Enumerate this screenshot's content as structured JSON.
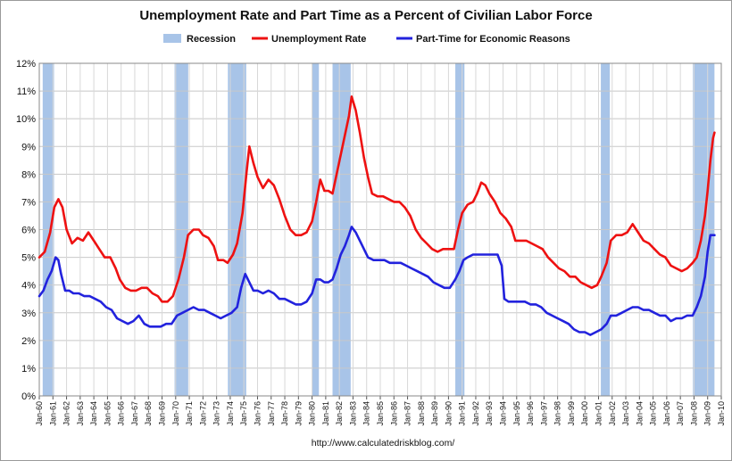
{
  "chart_data": {
    "type": "line",
    "title": "Unemployment Rate and Part Time as a Percent of Civilian Labor Force",
    "source": "http://www.calculatedriskblog.com/",
    "ylim": [
      0,
      12
    ],
    "y_ticks": [
      "0%",
      "1%",
      "2%",
      "3%",
      "4%",
      "5%",
      "6%",
      "7%",
      "8%",
      "9%",
      "10%",
      "11%",
      "12%"
    ],
    "x_range": [
      1960.0,
      2010.0
    ],
    "x_ticks": [
      "Jan-60",
      "Jan-61",
      "Jan-62",
      "Jan-63",
      "Jan-64",
      "Jan-65",
      "Jan-66",
      "Jan-67",
      "Jan-68",
      "Jan-69",
      "Jan-70",
      "Jan-71",
      "Jan-72",
      "Jan-73",
      "Jan-74",
      "Jan-75",
      "Jan-76",
      "Jan-77",
      "Jan-78",
      "Jan-79",
      "Jan-80",
      "Jan-81",
      "Jan-82",
      "Jan-83",
      "Jan-84",
      "Jan-85",
      "Jan-86",
      "Jan-87",
      "Jan-88",
      "Jan-89",
      "Jan-90",
      "Jan-91",
      "Jan-92",
      "Jan-93",
      "Jan-94",
      "Jan-95",
      "Jan-96",
      "Jan-97",
      "Jan-98",
      "Jan-99",
      "Jan-00",
      "Jan-01",
      "Jan-02",
      "Jan-03",
      "Jan-04",
      "Jan-05",
      "Jan-06",
      "Jan-07",
      "Jan-08",
      "Jan-09",
      "Jan-10"
    ],
    "grid": true,
    "legend_position": "top-center",
    "recessions": [
      [
        1960.25,
        1961.08
      ],
      [
        1969.92,
        1970.92
      ],
      [
        1973.83,
        1975.17
      ],
      [
        1980.0,
        1980.5
      ],
      [
        1981.5,
        1982.83
      ],
      [
        1990.5,
        1991.17
      ],
      [
        2001.17,
        2001.83
      ],
      [
        2007.92,
        2009.5
      ]
    ],
    "series": [
      {
        "name": "Unemployment Rate",
        "color": "#ee1111",
        "points": [
          [
            1960.0,
            5.0
          ],
          [
            1960.4,
            5.2
          ],
          [
            1960.8,
            5.9
          ],
          [
            1961.1,
            6.8
          ],
          [
            1961.4,
            7.1
          ],
          [
            1961.7,
            6.8
          ],
          [
            1962.0,
            6.0
          ],
          [
            1962.4,
            5.5
          ],
          [
            1962.8,
            5.7
          ],
          [
            1963.2,
            5.6
          ],
          [
            1963.6,
            5.9
          ],
          [
            1964.0,
            5.6
          ],
          [
            1964.4,
            5.3
          ],
          [
            1964.8,
            5.0
          ],
          [
            1965.2,
            5.0
          ],
          [
            1965.6,
            4.6
          ],
          [
            1965.9,
            4.2
          ],
          [
            1966.3,
            3.9
          ],
          [
            1966.7,
            3.8
          ],
          [
            1967.1,
            3.8
          ],
          [
            1967.5,
            3.9
          ],
          [
            1967.9,
            3.9
          ],
          [
            1968.3,
            3.7
          ],
          [
            1968.7,
            3.6
          ],
          [
            1969.0,
            3.4
          ],
          [
            1969.4,
            3.4
          ],
          [
            1969.8,
            3.6
          ],
          [
            1970.2,
            4.2
          ],
          [
            1970.6,
            5.0
          ],
          [
            1970.9,
            5.8
          ],
          [
            1971.3,
            6.0
          ],
          [
            1971.7,
            6.0
          ],
          [
            1972.0,
            5.8
          ],
          [
            1972.4,
            5.7
          ],
          [
            1972.8,
            5.4
          ],
          [
            1973.1,
            4.9
          ],
          [
            1973.5,
            4.9
          ],
          [
            1973.8,
            4.8
          ],
          [
            1974.2,
            5.1
          ],
          [
            1974.5,
            5.5
          ],
          [
            1974.9,
            6.6
          ],
          [
            1975.2,
            8.1
          ],
          [
            1975.4,
            9.0
          ],
          [
            1975.7,
            8.4
          ],
          [
            1976.0,
            7.9
          ],
          [
            1976.4,
            7.5
          ],
          [
            1976.8,
            7.8
          ],
          [
            1977.2,
            7.6
          ],
          [
            1977.6,
            7.1
          ],
          [
            1978.0,
            6.5
          ],
          [
            1978.4,
            6.0
          ],
          [
            1978.8,
            5.8
          ],
          [
            1979.2,
            5.8
          ],
          [
            1979.6,
            5.9
          ],
          [
            1980.0,
            6.3
          ],
          [
            1980.3,
            7.0
          ],
          [
            1980.6,
            7.8
          ],
          [
            1980.9,
            7.4
          ],
          [
            1981.2,
            7.4
          ],
          [
            1981.5,
            7.3
          ],
          [
            1981.8,
            8.0
          ],
          [
            1982.1,
            8.7
          ],
          [
            1982.4,
            9.4
          ],
          [
            1982.7,
            10.1
          ],
          [
            1982.9,
            10.8
          ],
          [
            1983.2,
            10.3
          ],
          [
            1983.5,
            9.5
          ],
          [
            1983.8,
            8.6
          ],
          [
            1984.1,
            7.9
          ],
          [
            1984.4,
            7.3
          ],
          [
            1984.8,
            7.2
          ],
          [
            1985.2,
            7.2
          ],
          [
            1985.6,
            7.1
          ],
          [
            1986.0,
            7.0
          ],
          [
            1986.4,
            7.0
          ],
          [
            1986.8,
            6.8
          ],
          [
            1987.2,
            6.5
          ],
          [
            1987.6,
            6.0
          ],
          [
            1988.0,
            5.7
          ],
          [
            1988.4,
            5.5
          ],
          [
            1988.8,
            5.3
          ],
          [
            1989.2,
            5.2
          ],
          [
            1989.6,
            5.3
          ],
          [
            1990.0,
            5.3
          ],
          [
            1990.4,
            5.3
          ],
          [
            1990.7,
            6.0
          ],
          [
            1991.0,
            6.6
          ],
          [
            1991.4,
            6.9
          ],
          [
            1991.8,
            7.0
          ],
          [
            1992.1,
            7.3
          ],
          [
            1992.4,
            7.7
          ],
          [
            1992.7,
            7.6
          ],
          [
            1993.0,
            7.3
          ],
          [
            1993.4,
            7.0
          ],
          [
            1993.8,
            6.6
          ],
          [
            1994.2,
            6.4
          ],
          [
            1994.6,
            6.1
          ],
          [
            1994.9,
            5.6
          ],
          [
            1995.3,
            5.6
          ],
          [
            1995.7,
            5.6
          ],
          [
            1996.1,
            5.5
          ],
          [
            1996.5,
            5.4
          ],
          [
            1996.9,
            5.3
          ],
          [
            1997.3,
            5.0
          ],
          [
            1997.7,
            4.8
          ],
          [
            1998.1,
            4.6
          ],
          [
            1998.5,
            4.5
          ],
          [
            1998.9,
            4.3
          ],
          [
            1999.3,
            4.3
          ],
          [
            1999.7,
            4.1
          ],
          [
            2000.1,
            4.0
          ],
          [
            2000.5,
            3.9
          ],
          [
            2000.9,
            4.0
          ],
          [
            2001.2,
            4.3
          ],
          [
            2001.6,
            4.8
          ],
          [
            2001.9,
            5.6
          ],
          [
            2002.3,
            5.8
          ],
          [
            2002.7,
            5.8
          ],
          [
            2003.1,
            5.9
          ],
          [
            2003.5,
            6.2
          ],
          [
            2003.9,
            5.9
          ],
          [
            2004.3,
            5.6
          ],
          [
            2004.7,
            5.5
          ],
          [
            2005.1,
            5.3
          ],
          [
            2005.5,
            5.1
          ],
          [
            2005.9,
            5.0
          ],
          [
            2006.3,
            4.7
          ],
          [
            2006.7,
            4.6
          ],
          [
            2007.1,
            4.5
          ],
          [
            2007.5,
            4.6
          ],
          [
            2007.9,
            4.8
          ],
          [
            2008.2,
            5.0
          ],
          [
            2008.5,
            5.6
          ],
          [
            2008.8,
            6.5
          ],
          [
            2009.0,
            7.4
          ],
          [
            2009.2,
            8.5
          ],
          [
            2009.4,
            9.3
          ],
          [
            2009.5,
            9.5
          ]
        ]
      },
      {
        "name": "Part-Time for Economic Reasons",
        "color": "#2222dd",
        "points": [
          [
            1960.0,
            3.6
          ],
          [
            1960.3,
            3.8
          ],
          [
            1960.6,
            4.2
          ],
          [
            1960.9,
            4.5
          ],
          [
            1961.2,
            5.0
          ],
          [
            1961.4,
            4.9
          ],
          [
            1961.6,
            4.4
          ],
          [
            1961.9,
            3.8
          ],
          [
            1962.2,
            3.8
          ],
          [
            1962.5,
            3.7
          ],
          [
            1962.9,
            3.7
          ],
          [
            1963.3,
            3.6
          ],
          [
            1963.7,
            3.6
          ],
          [
            1964.1,
            3.5
          ],
          [
            1964.5,
            3.4
          ],
          [
            1964.9,
            3.2
          ],
          [
            1965.3,
            3.1
          ],
          [
            1965.7,
            2.8
          ],
          [
            1966.1,
            2.7
          ],
          [
            1966.5,
            2.6
          ],
          [
            1966.9,
            2.7
          ],
          [
            1967.3,
            2.9
          ],
          [
            1967.7,
            2.6
          ],
          [
            1968.1,
            2.5
          ],
          [
            1968.5,
            2.5
          ],
          [
            1968.9,
            2.5
          ],
          [
            1969.3,
            2.6
          ],
          [
            1969.7,
            2.6
          ],
          [
            1970.1,
            2.9
          ],
          [
            1970.5,
            3.0
          ],
          [
            1970.9,
            3.1
          ],
          [
            1971.3,
            3.2
          ],
          [
            1971.7,
            3.1
          ],
          [
            1972.1,
            3.1
          ],
          [
            1972.5,
            3.0
          ],
          [
            1972.9,
            2.9
          ],
          [
            1973.3,
            2.8
          ],
          [
            1973.7,
            2.9
          ],
          [
            1974.1,
            3.0
          ],
          [
            1974.5,
            3.2
          ],
          [
            1974.8,
            3.9
          ],
          [
            1975.1,
            4.4
          ],
          [
            1975.4,
            4.1
          ],
          [
            1975.7,
            3.8
          ],
          [
            1976.0,
            3.8
          ],
          [
            1976.4,
            3.7
          ],
          [
            1976.8,
            3.8
          ],
          [
            1977.2,
            3.7
          ],
          [
            1977.6,
            3.5
          ],
          [
            1978.0,
            3.5
          ],
          [
            1978.4,
            3.4
          ],
          [
            1978.8,
            3.3
          ],
          [
            1979.2,
            3.3
          ],
          [
            1979.6,
            3.4
          ],
          [
            1980.0,
            3.7
          ],
          [
            1980.3,
            4.2
          ],
          [
            1980.6,
            4.2
          ],
          [
            1980.9,
            4.1
          ],
          [
            1981.2,
            4.1
          ],
          [
            1981.5,
            4.2
          ],
          [
            1981.8,
            4.6
          ],
          [
            1982.1,
            5.1
          ],
          [
            1982.4,
            5.4
          ],
          [
            1982.7,
            5.8
          ],
          [
            1982.9,
            6.1
          ],
          [
            1983.2,
            5.9
          ],
          [
            1983.5,
            5.6
          ],
          [
            1983.8,
            5.3
          ],
          [
            1984.1,
            5.0
          ],
          [
            1984.5,
            4.9
          ],
          [
            1984.9,
            4.9
          ],
          [
            1985.3,
            4.9
          ],
          [
            1985.7,
            4.8
          ],
          [
            1986.1,
            4.8
          ],
          [
            1986.5,
            4.8
          ],
          [
            1986.9,
            4.7
          ],
          [
            1987.3,
            4.6
          ],
          [
            1987.7,
            4.5
          ],
          [
            1988.1,
            4.4
          ],
          [
            1988.5,
            4.3
          ],
          [
            1988.9,
            4.1
          ],
          [
            1989.3,
            4.0
          ],
          [
            1989.7,
            3.9
          ],
          [
            1990.1,
            3.9
          ],
          [
            1990.5,
            4.2
          ],
          [
            1990.8,
            4.5
          ],
          [
            1991.1,
            4.9
          ],
          [
            1991.4,
            5.0
          ],
          [
            1991.8,
            5.1
          ],
          [
            1992.2,
            5.1
          ],
          [
            1992.6,
            5.1
          ],
          [
            1993.0,
            5.1
          ],
          [
            1993.3,
            5.1
          ],
          [
            1993.6,
            5.1
          ],
          [
            1993.9,
            4.7
          ],
          [
            1994.1,
            3.5
          ],
          [
            1994.4,
            3.4
          ],
          [
            1994.8,
            3.4
          ],
          [
            1995.2,
            3.4
          ],
          [
            1995.6,
            3.4
          ],
          [
            1996.0,
            3.3
          ],
          [
            1996.4,
            3.3
          ],
          [
            1996.8,
            3.2
          ],
          [
            1997.2,
            3.0
          ],
          [
            1997.6,
            2.9
          ],
          [
            1998.0,
            2.8
          ],
          [
            1998.4,
            2.7
          ],
          [
            1998.8,
            2.6
          ],
          [
            1999.2,
            2.4
          ],
          [
            1999.6,
            2.3
          ],
          [
            2000.0,
            2.3
          ],
          [
            2000.4,
            2.2
          ],
          [
            2000.8,
            2.3
          ],
          [
            2001.2,
            2.4
          ],
          [
            2001.6,
            2.6
          ],
          [
            2001.9,
            2.9
          ],
          [
            2002.3,
            2.9
          ],
          [
            2002.7,
            3.0
          ],
          [
            2003.1,
            3.1
          ],
          [
            2003.5,
            3.2
          ],
          [
            2003.9,
            3.2
          ],
          [
            2004.3,
            3.1
          ],
          [
            2004.7,
            3.1
          ],
          [
            2005.1,
            3.0
          ],
          [
            2005.5,
            2.9
          ],
          [
            2005.9,
            2.9
          ],
          [
            2006.3,
            2.7
          ],
          [
            2006.7,
            2.8
          ],
          [
            2007.1,
            2.8
          ],
          [
            2007.5,
            2.9
          ],
          [
            2007.9,
            2.9
          ],
          [
            2008.2,
            3.2
          ],
          [
            2008.5,
            3.6
          ],
          [
            2008.8,
            4.3
          ],
          [
            2009.0,
            5.2
          ],
          [
            2009.2,
            5.8
          ],
          [
            2009.5,
            5.8
          ]
        ]
      }
    ]
  },
  "legend": {
    "recession_label": "Recession",
    "recession_color": "#a8c4e8",
    "unemployment_label": "Unemployment Rate",
    "parttime_label": "Part-Time for Economic Reasons"
  }
}
